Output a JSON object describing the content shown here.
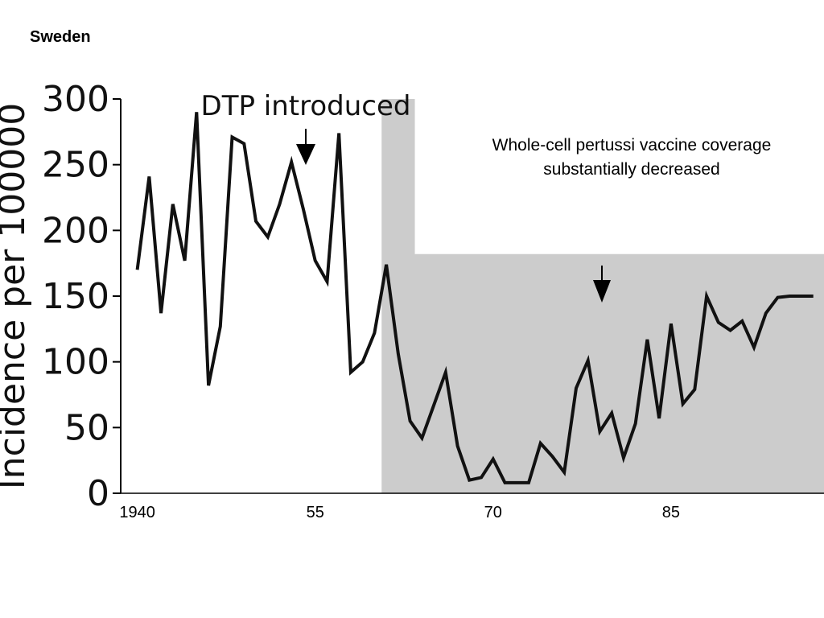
{
  "slide": {
    "title": "Sweden"
  },
  "chart_data": {
    "type": "line",
    "title": "",
    "ylabel": "Incidence per 100000",
    "xlabel": "",
    "ylim": [
      0,
      300
    ],
    "yticks": [
      0,
      50,
      100,
      150,
      200,
      250,
      300
    ],
    "xlim": [
      1938.6,
      1997.9
    ],
    "xticks": [
      {
        "value": 1940,
        "label": "1940"
      },
      {
        "value": 1955,
        "label": "55"
      },
      {
        "value": 1970,
        "label": "70"
      },
      {
        "value": 1985,
        "label": "85"
      }
    ],
    "grid": false,
    "series": [
      {
        "x": [
          1940,
          1941,
          1942,
          1943,
          1944,
          1945,
          1946,
          1947,
          1948,
          1949,
          1950,
          1951,
          1952,
          1953,
          1954,
          1955,
          1956,
          1957,
          1958,
          1959,
          1960,
          1961,
          1962,
          1963,
          1964,
          1965,
          1966,
          1967,
          1968,
          1969,
          1970,
          1971,
          1972,
          1973,
          1974,
          1975,
          1976,
          1977,
          1978,
          1979,
          1980,
          1981,
          1982,
          1983,
          1984,
          1985,
          1986,
          1987,
          1988,
          1989,
          1990,
          1991,
          1992,
          1993,
          1994,
          1995,
          1996,
          1997
        ],
        "values": [
          170,
          241,
          137,
          220,
          177,
          290,
          82,
          127,
          271,
          266,
          207,
          195,
          220,
          252,
          216,
          177,
          161,
          274,
          92,
          100,
          122,
          174,
          106,
          55,
          42,
          67,
          92,
          36,
          10,
          12,
          26,
          8,
          8,
          8,
          38,
          28,
          16,
          80,
          101,
          47,
          61,
          27,
          53,
          117,
          57,
          129,
          68,
          79,
          150,
          130,
          124,
          131,
          111,
          137,
          149,
          150,
          150,
          150
        ]
      }
    ],
    "shaded_regions": [
      {
        "from": 1960.6,
        "to": 1963.4,
        "y": 300,
        "color": "#cccccc"
      },
      {
        "from": 1963.4,
        "to": 1997.9,
        "y": 182,
        "color": "#cccccc"
      }
    ],
    "annotations": [
      {
        "text": "DTP introduced",
        "x": 1953,
        "y": 250
      },
      {
        "text_lines": [
          "Whole-cell pertussi vaccine coverage",
          "substantially decreased"
        ],
        "x": 1976.5,
        "y": 148
      }
    ]
  }
}
